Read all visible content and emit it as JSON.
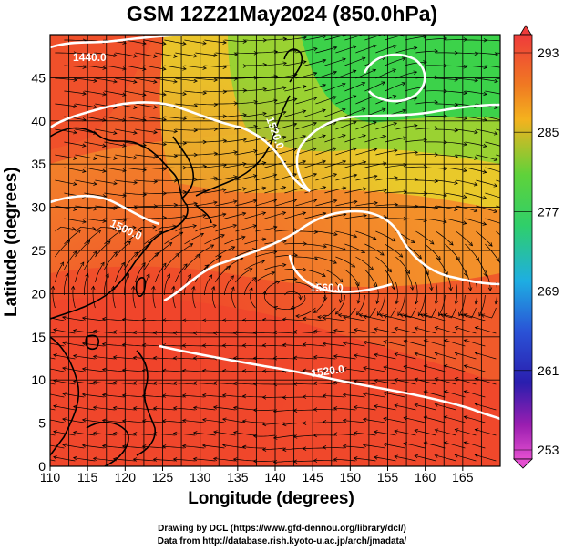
{
  "title": "GSM 12Z21May2024 (850.0hPa)",
  "xlabel": "Longitude (degrees)",
  "ylabel": "Latitude  (degrees)",
  "credit_line1": "Drawing by DCL (https://www.gfd-dennou.org/library/dcl/)",
  "credit_line2": "Data from http://database.rish.kyoto-u.ac.jp/arch/jmadata/",
  "map": {
    "lon_range": [
      110,
      170
    ],
    "lat_range": [
      0,
      50
    ],
    "lon_ticks": [
      "110",
      "115",
      "120",
      "125",
      "130",
      "135",
      "140",
      "145",
      "150",
      "155",
      "160",
      "165"
    ],
    "lat_ticks": [
      "0",
      "5",
      "10",
      "15",
      "20",
      "25",
      "30",
      "35",
      "40",
      "45"
    ],
    "contour_labels": [
      "1440.0",
      "1500.0",
      "1520.0",
      "1560.0",
      "1520.0"
    ],
    "contour_color": "#ffffff",
    "coast_color": "#000000",
    "streamline_color": "#000000"
  },
  "colorbar": {
    "tick_labels": [
      "293",
      "285",
      "277",
      "269",
      "261",
      "253"
    ],
    "colors": [
      "#f03c3c",
      "#f5861e",
      "#f0d21e",
      "#3cd23c",
      "#1eb4dc",
      "#2846d2",
      "#3c1ebe",
      "#b41eb4",
      "#e650d2"
    ]
  }
}
